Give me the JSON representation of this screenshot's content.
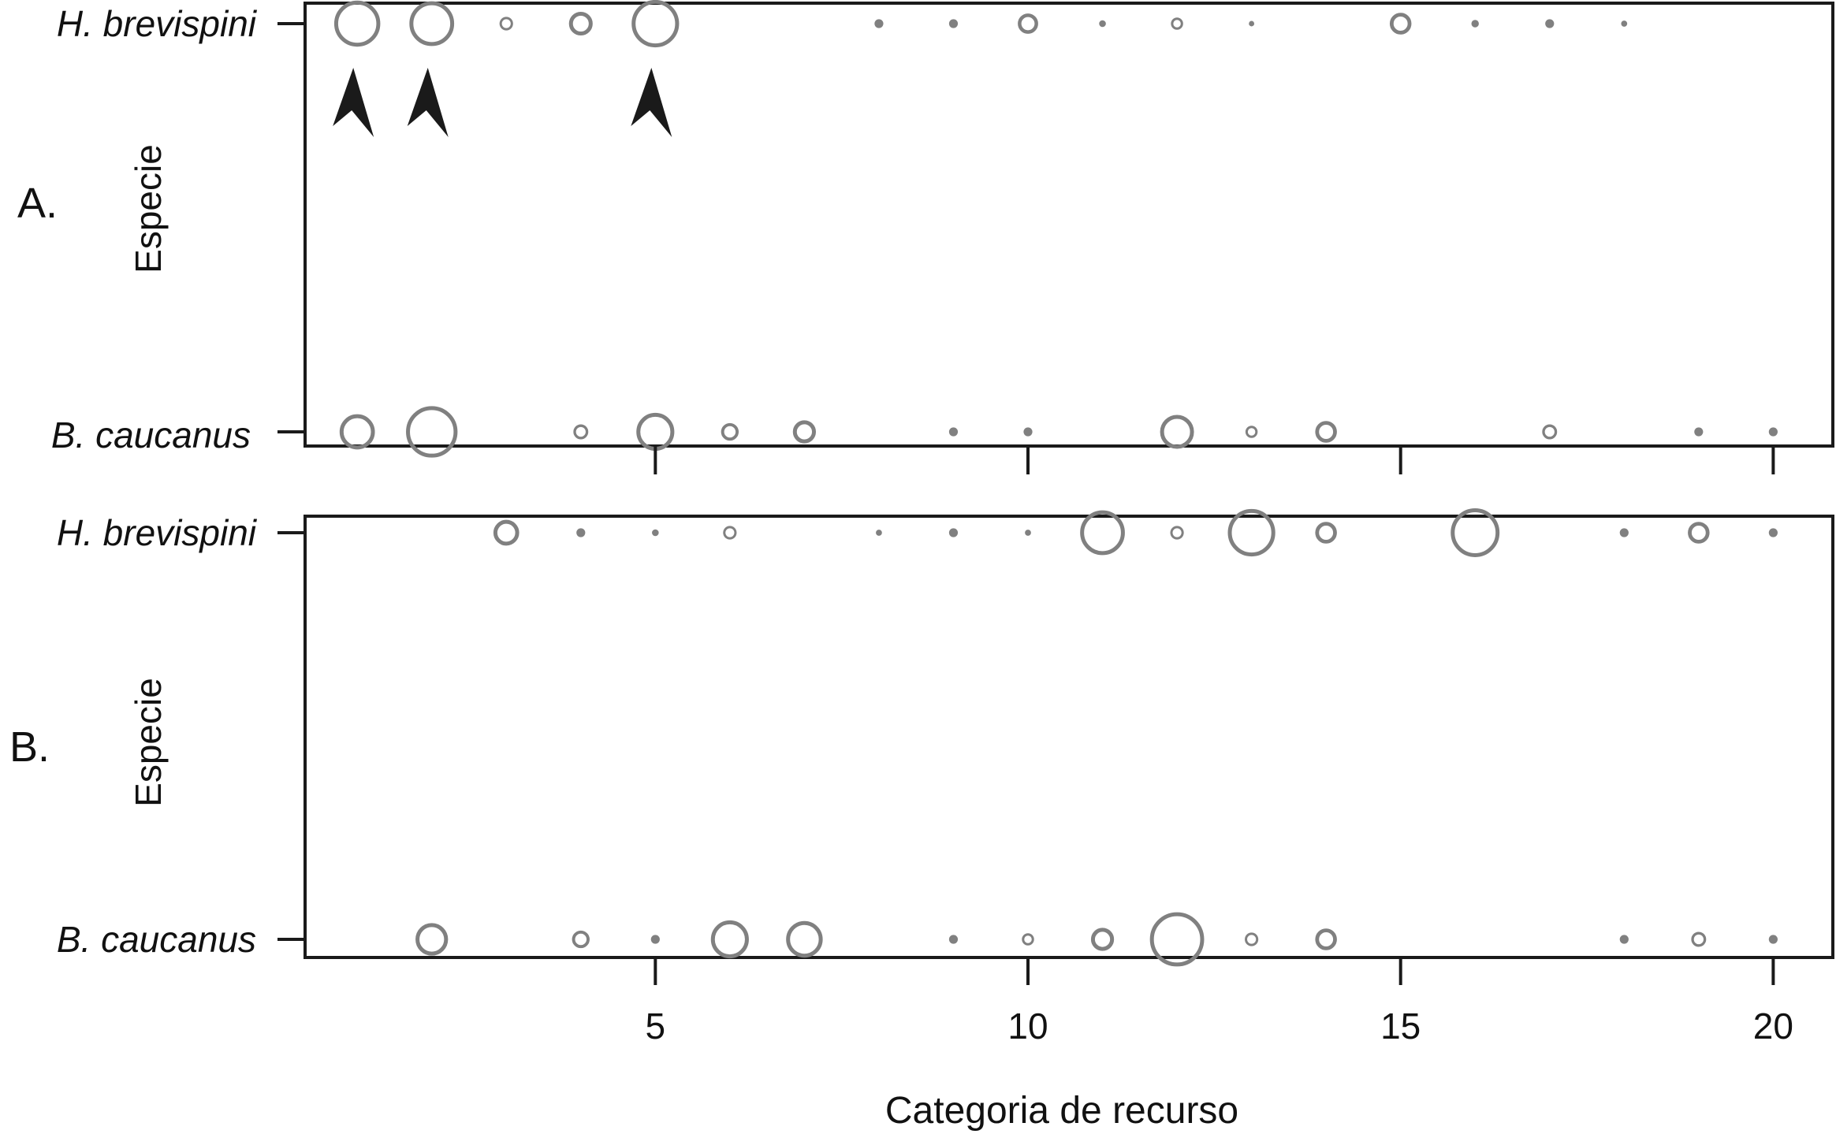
{
  "chart_data": {
    "type": "scatter",
    "subtype": "bubble",
    "xlabel": "Categoria de recurso",
    "xticks": [
      5,
      10,
      15,
      20
    ],
    "xlim": [
      0.3,
      20.8
    ],
    "species": [
      "H. brevispini",
      "B. caucanus"
    ],
    "marker_color": "#808080",
    "arrow_color": "#1a1a1a",
    "panels": [
      {
        "label": "A.",
        "ylabel": "Especie",
        "annotations": [
          {
            "type": "arrowhead",
            "species": "H. brevispini",
            "category": 1
          },
          {
            "type": "arrowhead",
            "species": "H. brevispini",
            "category": 2
          },
          {
            "type": "arrowhead",
            "species": "H. brevispini",
            "category": 5
          }
        ],
        "series": [
          {
            "name": "H. brevispini",
            "points": [
              {
                "x": 1,
                "size": 6.8
              },
              {
                "x": 2,
                "size": 6.6
              },
              {
                "x": 3,
                "size": 2.0
              },
              {
                "x": 4,
                "size": 3.5
              },
              {
                "x": 5,
                "size": 7.0
              },
              {
                "x": 8,
                "size": 1.3
              },
              {
                "x": 9,
                "size": 1.3
              },
              {
                "x": 10,
                "size": 3.0
              },
              {
                "x": 11,
                "size": 1.0
              },
              {
                "x": 12,
                "size": 1.8
              },
              {
                "x": 13,
                "size": 0.8
              },
              {
                "x": 15,
                "size": 3.2
              },
              {
                "x": 16,
                "size": 1.1
              },
              {
                "x": 17,
                "size": 1.3
              },
              {
                "x": 18,
                "size": 0.9
              }
            ]
          },
          {
            "name": "B. caucanus",
            "points": [
              {
                "x": 1,
                "size": 5.2
              },
              {
                "x": 2,
                "size": 7.6
              },
              {
                "x": 4,
                "size": 2.2
              },
              {
                "x": 5,
                "size": 5.6
              },
              {
                "x": 6,
                "size": 2.6
              },
              {
                "x": 7,
                "size": 3.4
              },
              {
                "x": 9,
                "size": 1.3
              },
              {
                "x": 10,
                "size": 1.3
              },
              {
                "x": 12,
                "size": 5.0
              },
              {
                "x": 13,
                "size": 1.8
              },
              {
                "x": 14,
                "size": 3.2
              },
              {
                "x": 17,
                "size": 2.2
              },
              {
                "x": 19,
                "size": 1.3
              },
              {
                "x": 20,
                "size": 1.3
              }
            ]
          }
        ]
      },
      {
        "label": "B.",
        "ylabel": "Especie",
        "annotations": [],
        "series": [
          {
            "name": "H. brevispini",
            "points": [
              {
                "x": 3,
                "size": 3.8
              },
              {
                "x": 4,
                "size": 1.3
              },
              {
                "x": 5,
                "size": 1.0
              },
              {
                "x": 6,
                "size": 2.0
              },
              {
                "x": 8,
                "size": 0.9
              },
              {
                "x": 9,
                "size": 1.3
              },
              {
                "x": 10,
                "size": 0.9
              },
              {
                "x": 11,
                "size": 6.6
              },
              {
                "x": 12,
                "size": 2.0
              },
              {
                "x": 13,
                "size": 7.0
              },
              {
                "x": 14,
                "size": 3.2
              },
              {
                "x": 16,
                "size": 7.2
              },
              {
                "x": 18,
                "size": 1.3
              },
              {
                "x": 19,
                "size": 3.2
              },
              {
                "x": 20,
                "size": 1.3
              }
            ]
          },
          {
            "name": "B. caucanus",
            "points": [
              {
                "x": 2,
                "size": 4.8
              },
              {
                "x": 4,
                "size": 2.6
              },
              {
                "x": 5,
                "size": 1.3
              },
              {
                "x": 6,
                "size": 5.6
              },
              {
                "x": 7,
                "size": 5.4
              },
              {
                "x": 9,
                "size": 1.3
              },
              {
                "x": 10,
                "size": 1.8
              },
              {
                "x": 11,
                "size": 3.4
              },
              {
                "x": 12,
                "size": 8.0
              },
              {
                "x": 13,
                "size": 2.0
              },
              {
                "x": 14,
                "size": 3.2
              },
              {
                "x": 18,
                "size": 1.3
              },
              {
                "x": 19,
                "size": 2.2
              },
              {
                "x": 20,
                "size": 1.3
              }
            ]
          }
        ]
      }
    ]
  }
}
